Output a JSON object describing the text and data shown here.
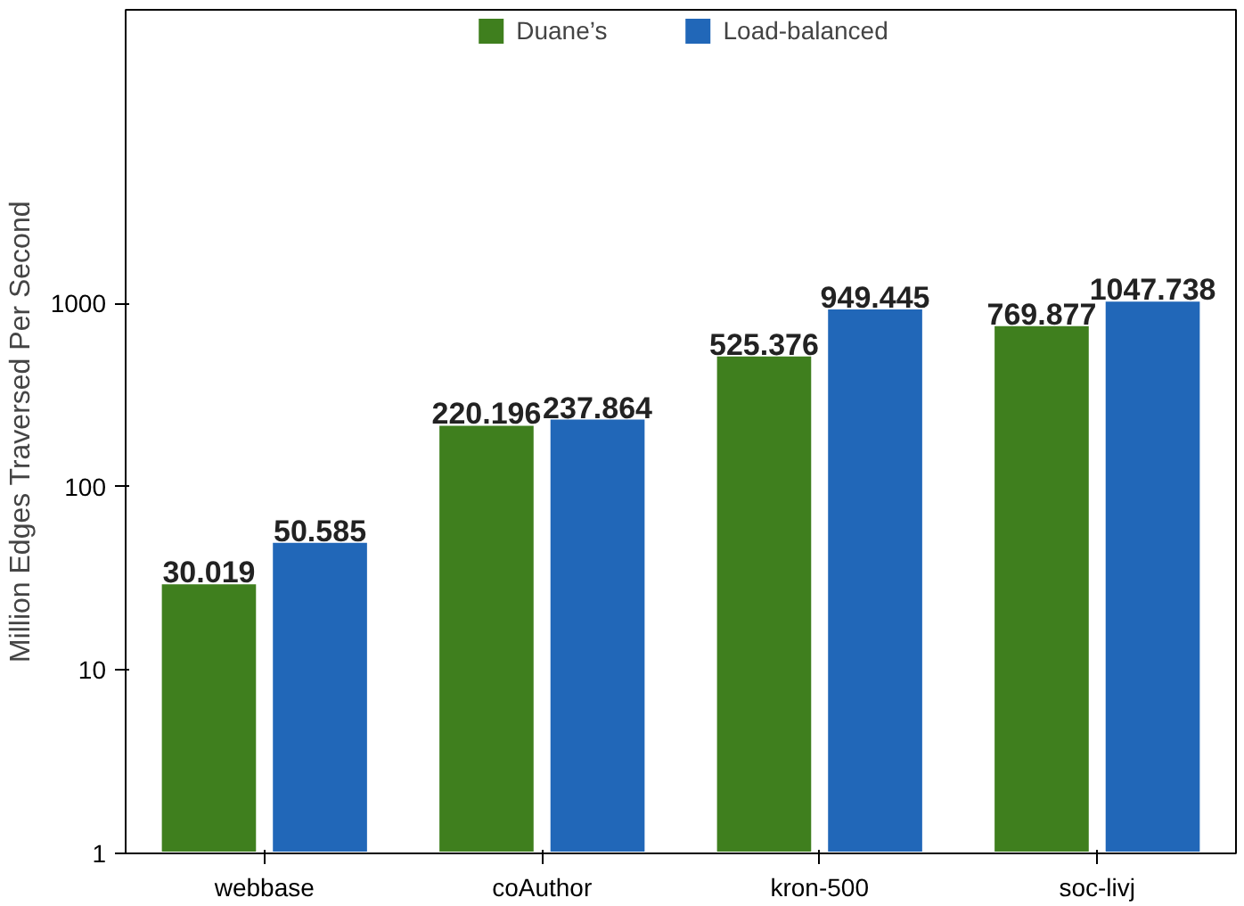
{
  "chart_data": {
    "type": "bar",
    "ylabel": "Million Edges Traversed Per Second",
    "categories": [
      "webbase",
      "coAuthor",
      "kron-500",
      "soc-livj"
    ],
    "series": [
      {
        "name": "Duane’s",
        "color": "#3f7f1e",
        "values": [
          30.019,
          220.196,
          525.376,
          769.877
        ]
      },
      {
        "name": "Load-balanced",
        "color": "#2167b8",
        "values": [
          50.585,
          237.864,
          949.445,
          1047.738
        ]
      }
    ],
    "log": "y",
    "ylim": [
      1,
      40000
    ],
    "yticks": [
      1,
      10,
      100,
      1000
    ],
    "grid": false,
    "legend": "top",
    "data_labels": true
  }
}
